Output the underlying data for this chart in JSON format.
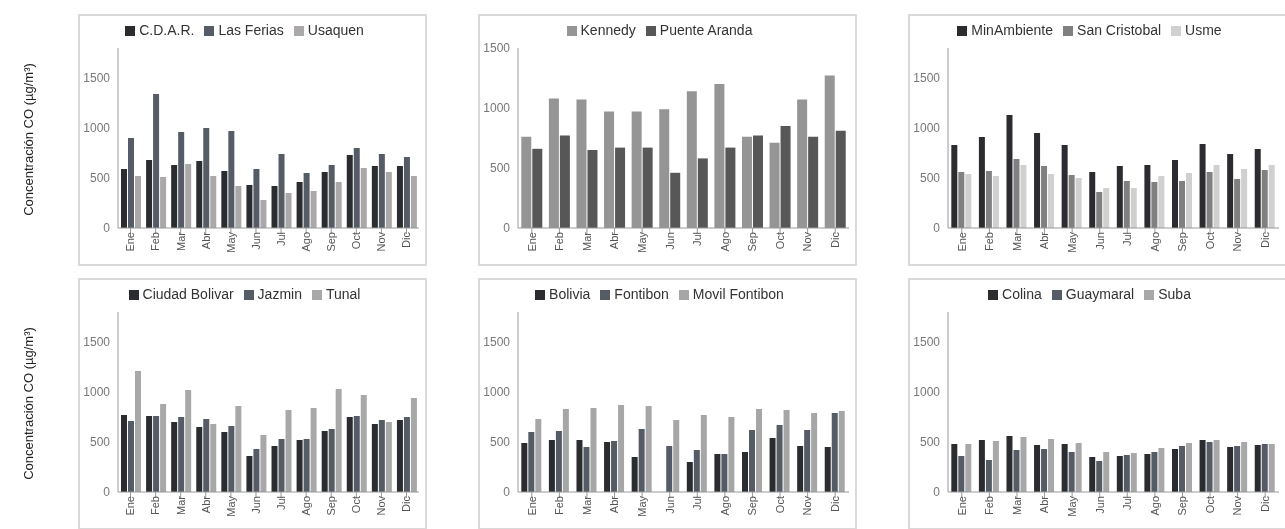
{
  "chart_data": [
    {
      "type": "bar",
      "ylabel": "Concentración CO (µg/m³)",
      "categories": [
        "Ene",
        "Feb",
        "Mar",
        "Abr",
        "May",
        "Jun",
        "Jul",
        "Ago",
        "Sep",
        "Oct",
        "Nov",
        "Dic"
      ],
      "ylim": [
        0,
        1800
      ],
      "yticks": [
        0,
        500,
        1000,
        1500
      ],
      "grid": false,
      "legend": "top",
      "series": [
        {
          "name": "C.D.A.R.",
          "color": "#2b2c30",
          "values": [
            590,
            680,
            630,
            670,
            570,
            430,
            420,
            460,
            560,
            730,
            620,
            620
          ]
        },
        {
          "name": "Las Ferias",
          "color": "#555c66",
          "values": [
            900,
            1340,
            960,
            1000,
            970,
            590,
            740,
            550,
            630,
            800,
            740,
            710
          ]
        },
        {
          "name": "Usaquen",
          "color": "#aaa8a8",
          "values": [
            520,
            510,
            640,
            520,
            420,
            280,
            350,
            370,
            460,
            600,
            560,
            520
          ]
        }
      ]
    },
    {
      "type": "bar",
      "categories": [
        "Ene",
        "Feb",
        "Mar",
        "Abr",
        "May",
        "Jun",
        "Jul",
        "Ago",
        "Sep",
        "Oct",
        "Nov",
        "Dic"
      ],
      "ylim": [
        0,
        1500
      ],
      "yticks": [
        0,
        500,
        1000,
        1500
      ],
      "grid": false,
      "legend": "top",
      "series": [
        {
          "name": "Kennedy",
          "color": "#959595",
          "values": [
            760,
            1080,
            1070,
            970,
            970,
            990,
            1140,
            1200,
            760,
            710,
            1070,
            1270
          ]
        },
        {
          "name": "Puente Aranda",
          "color": "#575757",
          "values": [
            660,
            770,
            650,
            670,
            670,
            460,
            580,
            670,
            770,
            850,
            760,
            810
          ]
        }
      ]
    },
    {
      "type": "bar",
      "categories": [
        "Ene",
        "Feb",
        "Mar",
        "Abr",
        "May",
        "Jun",
        "Jul",
        "Ago",
        "Sep",
        "Oct",
        "Nov",
        "Dic"
      ],
      "ylim": [
        0,
        1800
      ],
      "yticks": [
        0,
        500,
        1000,
        1500
      ],
      "grid": false,
      "legend": "top",
      "series": [
        {
          "name": "MinAmbiente",
          "color": "#2b2c30",
          "values": [
            830,
            910,
            1130,
            950,
            830,
            560,
            620,
            630,
            680,
            840,
            740,
            790
          ]
        },
        {
          "name": "San Cristobal",
          "color": "#808080",
          "values": [
            560,
            570,
            690,
            620,
            530,
            360,
            470,
            460,
            470,
            560,
            490,
            580
          ]
        },
        {
          "name": "Usme",
          "color": "#d0d0d0",
          "values": [
            540,
            520,
            630,
            540,
            500,
            400,
            400,
            520,
            550,
            630,
            590,
            630
          ]
        }
      ]
    },
    {
      "type": "bar",
      "ylabel": "Concentración CO (µg/m³)",
      "categories": [
        "Ene",
        "Feb",
        "Mar",
        "Abr",
        "May",
        "Jun",
        "Jul",
        "Ago",
        "Sep",
        "Oct",
        "Nov",
        "Dic"
      ],
      "ylim": [
        0,
        1800
      ],
      "yticks": [
        0,
        500,
        1000,
        1500
      ],
      "grid": false,
      "legend": "top",
      "series": [
        {
          "name": "Ciudad Bolivar",
          "color": "#2b2c30",
          "values": [
            770,
            760,
            700,
            650,
            600,
            360,
            460,
            520,
            610,
            750,
            680,
            720
          ]
        },
        {
          "name": "Jazmin",
          "color": "#555c66",
          "values": [
            710,
            760,
            750,
            730,
            660,
            430,
            530,
            530,
            630,
            760,
            720,
            750
          ]
        },
        {
          "name": "Tunal",
          "color": "#a8a8a8",
          "values": [
            1210,
            880,
            1020,
            680,
            860,
            570,
            820,
            840,
            1030,
            970,
            700,
            940
          ]
        }
      ]
    },
    {
      "type": "bar",
      "categories": [
        "Ene",
        "Feb",
        "Mar",
        "Abr",
        "May",
        "Jun",
        "Jul",
        "Ago",
        "Sep",
        "Oct",
        "Nov",
        "Dic"
      ],
      "ylim": [
        0,
        1800
      ],
      "yticks": [
        0,
        500,
        1000,
        1500
      ],
      "grid": false,
      "legend": "top",
      "series": [
        {
          "name": "Bolivia",
          "color": "#2b2c30",
          "values": [
            490,
            520,
            520,
            500,
            350,
            null,
            300,
            380,
            400,
            540,
            460,
            450
          ]
        },
        {
          "name": "Fontibon",
          "color": "#555c66",
          "values": [
            600,
            610,
            450,
            510,
            630,
            460,
            420,
            380,
            620,
            670,
            620,
            790
          ]
        },
        {
          "name": "Movil Fontibon",
          "color": "#a6a6a6",
          "values": [
            730,
            830,
            840,
            870,
            860,
            720,
            770,
            750,
            830,
            820,
            790,
            810
          ]
        }
      ]
    },
    {
      "type": "bar",
      "categories": [
        "Ene",
        "Feb",
        "Mar",
        "Abr",
        "May",
        "Jun",
        "Jul",
        "Ago",
        "Sep",
        "Oct",
        "Nov",
        "Dic"
      ],
      "ylim": [
        0,
        1800
      ],
      "yticks": [
        0,
        500,
        1000,
        1500
      ],
      "grid": false,
      "legend": "top",
      "series": [
        {
          "name": "Colina",
          "color": "#2b2c30",
          "values": [
            480,
            520,
            560,
            470,
            480,
            350,
            360,
            380,
            430,
            520,
            450,
            470
          ]
        },
        {
          "name": "Guaymaral",
          "color": "#555c66",
          "values": [
            360,
            320,
            420,
            430,
            400,
            310,
            370,
            400,
            460,
            500,
            460,
            480
          ]
        },
        {
          "name": "Suba",
          "color": "#a8a8a8",
          "values": [
            480,
            510,
            550,
            530,
            490,
            400,
            390,
            440,
            490,
            520,
            500,
            480
          ]
        }
      ]
    }
  ]
}
